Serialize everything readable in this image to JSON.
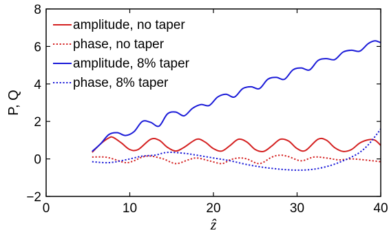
{
  "chart_data": {
    "type": "line",
    "xlabel": "ẑ",
    "ylabel": "P, Q",
    "xlim": [
      0,
      40
    ],
    "ylim": [
      -2,
      8
    ],
    "xticks": [
      0,
      10,
      20,
      30,
      40
    ],
    "yticks": [
      -2,
      0,
      2,
      4,
      6,
      8
    ],
    "xtick_labels": [
      "0",
      "10",
      "20",
      "30",
      "40"
    ],
    "ytick_labels": [
      "−2",
      "0",
      "2",
      "4",
      "6",
      "8"
    ],
    "grid": false,
    "legend_placement": "top-left",
    "series": [
      {
        "name": "amplitude, no taper",
        "color": "#d42020",
        "dash": "solid",
        "x": [
          5.5,
          6.5,
          7.5,
          8.0,
          9.0,
          10.0,
          11.0,
          12.5,
          13.5,
          14.5,
          15.5,
          16.5,
          18.0,
          19.0,
          20.0,
          21.0,
          22.0,
          23.0,
          24.0,
          25.0,
          26.0,
          27.0,
          28.0,
          29.0,
          30.0,
          31.0,
          32.5,
          33.5,
          34.5,
          35.5,
          36.5,
          37.5,
          38.5,
          39.3,
          40.0
        ],
        "y": [
          0.35,
          0.8,
          1.12,
          1.15,
          0.85,
          0.5,
          0.5,
          1.05,
          1.0,
          0.62,
          0.42,
          0.62,
          1.05,
          0.9,
          0.55,
          0.42,
          0.72,
          1.05,
          0.9,
          0.5,
          0.4,
          0.7,
          1.05,
          0.95,
          0.55,
          0.45,
          1.05,
          1.0,
          0.6,
          0.4,
          0.5,
          0.85,
          1.02,
          1.0,
          0.72
        ]
      },
      {
        "name": "phase, no taper",
        "color": "#d42020",
        "dash": "dotted",
        "x": [
          5.5,
          7.0,
          8.0,
          9.5,
          10.5,
          11.5,
          12.5,
          14.0,
          15.5,
          17.0,
          18.0,
          19.5,
          21.0,
          22.0,
          23.0,
          24.0,
          25.5,
          27.0,
          28.0,
          29.0,
          30.5,
          32.0,
          33.5,
          35.0,
          36.5,
          38.0,
          40.0
        ],
        "y": [
          0.1,
          0.1,
          0.0,
          -0.2,
          -0.1,
          0.1,
          0.15,
          0.0,
          -0.25,
          -0.05,
          0.05,
          -0.1,
          -0.25,
          -0.05,
          0.05,
          0.0,
          -0.25,
          0.1,
          0.2,
          0.12,
          -0.1,
          0.1,
          0.05,
          -0.05,
          0.0,
          -0.05,
          -0.15
        ]
      },
      {
        "name": "amplitude, 8% taper",
        "color": "#1a1ad8",
        "dash": "solid",
        "x": [
          5.5,
          6.5,
          7.5,
          8.5,
          9.5,
          10.5,
          11.5,
          12.5,
          13.5,
          14.5,
          15.5,
          16.5,
          17.5,
          18.5,
          19.5,
          20.5,
          21.5,
          22.5,
          23.5,
          24.5,
          25.5,
          26.5,
          27.5,
          28.5,
          29.5,
          30.5,
          31.5,
          32.5,
          33.5,
          34.5,
          35.5,
          36.5,
          37.5,
          38.5,
          39.3,
          40.0
        ],
        "y": [
          0.4,
          0.8,
          1.3,
          1.4,
          1.25,
          1.45,
          2.0,
          1.95,
          1.75,
          2.4,
          2.5,
          2.3,
          2.7,
          2.9,
          2.85,
          3.3,
          3.45,
          3.3,
          3.75,
          3.85,
          3.75,
          4.25,
          4.35,
          4.25,
          4.75,
          4.85,
          4.75,
          5.25,
          5.35,
          5.3,
          5.7,
          5.8,
          5.75,
          6.15,
          6.3,
          6.2
        ]
      },
      {
        "name": "phase, 8% taper",
        "color": "#1a1ad8",
        "dash": "dotted",
        "x": [
          5.5,
          7.5,
          9.5,
          11.5,
          13.0,
          14.5,
          16.5,
          18.0,
          20.0,
          22.0,
          24.0,
          26.0,
          28.0,
          30.0,
          32.0,
          34.0,
          35.5,
          36.5,
          37.5,
          38.5,
          39.5,
          40.0
        ],
        "y": [
          -0.15,
          -0.2,
          -0.05,
          0.15,
          0.2,
          0.35,
          0.3,
          0.2,
          0.05,
          -0.1,
          -0.3,
          -0.45,
          -0.55,
          -0.6,
          -0.55,
          -0.35,
          -0.1,
          0.1,
          0.35,
          0.75,
          1.3,
          1.6
        ]
      }
    ]
  }
}
